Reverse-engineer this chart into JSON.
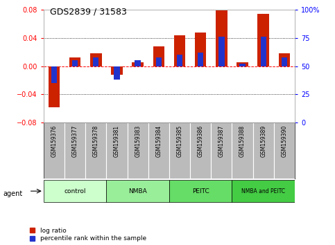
{
  "title": "GDS2839 / 31583",
  "samples": [
    "GSM159376",
    "GSM159377",
    "GSM159378",
    "GSM159381",
    "GSM159383",
    "GSM159384",
    "GSM159385",
    "GSM159386",
    "GSM159387",
    "GSM159388",
    "GSM159389",
    "GSM159390"
  ],
  "log_ratio": [
    -0.058,
    0.012,
    0.018,
    -0.012,
    0.005,
    0.028,
    0.044,
    0.048,
    0.079,
    0.005,
    0.074,
    0.018
  ],
  "percentile_rank": [
    35,
    55,
    58,
    38,
    55,
    58,
    60,
    62,
    76,
    52,
    76,
    58
  ],
  "groups": [
    {
      "label": "control",
      "color": "#ccffcc",
      "start": 0,
      "end": 3
    },
    {
      "label": "NMBA",
      "color": "#99ee99",
      "start": 3,
      "end": 6
    },
    {
      "label": "PEITC",
      "color": "#66dd66",
      "start": 6,
      "end": 9
    },
    {
      "label": "NMBA and PEITC",
      "color": "#44cc44",
      "start": 9,
      "end": 12
    }
  ],
  "ylim": [
    -0.08,
    0.08
  ],
  "yticks_left": [
    -0.08,
    -0.04,
    0.0,
    0.04,
    0.08
  ],
  "yticks_right": [
    0,
    25,
    50,
    75,
    100
  ],
  "bar_color_red": "#cc2200",
  "bar_color_blue": "#2233cc",
  "background_color": "#ffffff",
  "plot_bg": "#ffffff",
  "label_bg": "#bbbbbb",
  "bar_width": 0.55,
  "blue_bar_width": 0.28
}
